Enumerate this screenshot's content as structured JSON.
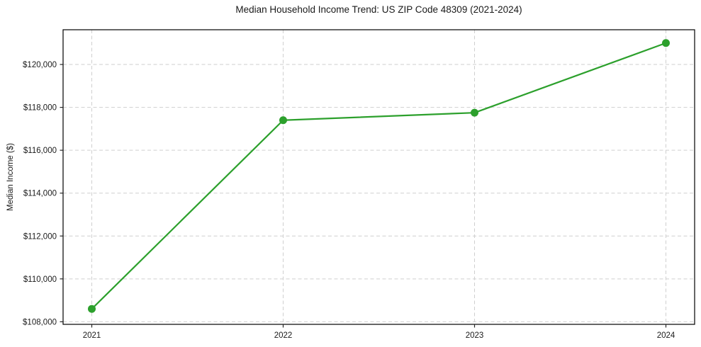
{
  "chart_data": {
    "type": "line",
    "title": "Median Household Income Trend: US ZIP Code 48309 (2021-2024)",
    "xlabel": "",
    "ylabel": "Median Income ($)",
    "x": [
      2021,
      2022,
      2023,
      2024
    ],
    "series": [
      {
        "name": "Median Household Income",
        "values": [
          108600,
          117400,
          117750,
          121000
        ]
      }
    ],
    "x_ticks": [
      2021,
      2022,
      2023,
      2024
    ],
    "x_tick_labels": [
      "2021",
      "2022",
      "2023",
      "2024"
    ],
    "y_ticks": [
      108000,
      110000,
      112000,
      114000,
      116000,
      118000,
      120000
    ],
    "y_tick_labels": [
      "$108,000",
      "$110,000",
      "$112,000",
      "$114,000",
      "$116,000",
      "$118,000",
      "$120,000"
    ],
    "xlim": [
      2020.85,
      2024.15
    ],
    "ylim": [
      107880,
      121620
    ],
    "grid": true,
    "grid_style": "dashed",
    "legend": "none",
    "colors": {
      "line": "#2ca02c",
      "marker": "#2ca02c",
      "grid": "#cfcfcf",
      "axis_border": "#000000",
      "tick": "#262626",
      "text": "#1a1a1a",
      "background": "#ffffff"
    },
    "line_width": 2.2,
    "marker": "circle",
    "marker_radius": 5.5
  }
}
